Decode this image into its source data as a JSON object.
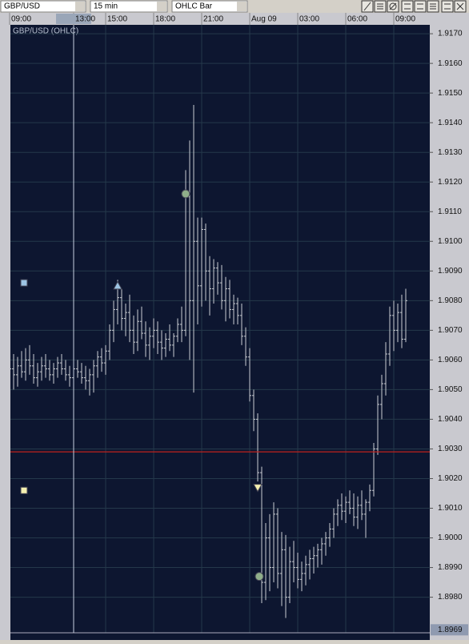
{
  "toolbar": {
    "symbol": "GBP/USD",
    "interval": "15 min",
    "style": "OHLC Bar"
  },
  "chart_data": {
    "type": "ohlc",
    "title": "GBP/USD (OHLC)",
    "open": [
      1.9059,
      1.9057,
      1.9055,
      1.9058,
      1.9056,
      1.906,
      1.9058,
      1.9054,
      1.9056,
      1.9058,
      1.9057,
      1.9055,
      1.9057,
      1.9059,
      1.9057,
      1.9055,
      1.9054,
      1.9057,
      1.9056,
      1.9054,
      1.9053,
      1.9055,
      1.9058,
      1.9061,
      1.9059,
      1.9063,
      1.907,
      1.9077,
      1.9081,
      1.9074,
      1.9076,
      1.907,
      1.9066,
      1.9073,
      1.9069,
      1.9065,
      1.9068,
      1.907,
      1.9066,
      1.9064,
      1.9067,
      1.9065,
      1.9068,
      1.9072,
      1.907,
      1.9115,
      1.908,
      1.91,
      1.9085,
      1.9104,
      1.909,
      1.9084,
      1.9091,
      1.9086,
      1.908,
      1.9084,
      1.9077,
      1.9079,
      1.9075,
      1.9068,
      1.9061,
      1.9048,
      1.904,
      1.9022,
      1.8985,
      1.9,
      1.899,
      1.9008,
      1.8988,
      1.8996,
      1.898,
      1.8992,
      1.899,
      1.8986,
      1.8988,
      1.8991,
      1.8993,
      1.8994,
      1.8996,
      1.8998,
      1.9,
      1.9003,
      1.9008,
      1.9011,
      1.9009,
      1.9012,
      1.901,
      1.9007,
      1.9011,
      1.9008,
      1.9012,
      1.9016,
      1.903,
      1.9045,
      1.9052,
      1.9062,
      1.9075,
      1.907,
      1.9076,
      1.9067
    ],
    "high": [
      1.9063,
      1.9062,
      1.9061,
      1.9063,
      1.9064,
      1.9065,
      1.9062,
      1.9059,
      1.9061,
      1.9062,
      1.906,
      1.9059,
      1.9061,
      1.9062,
      1.906,
      1.9058,
      1.9059,
      1.906,
      1.9059,
      1.9058,
      1.9057,
      1.906,
      1.9063,
      1.9064,
      1.9065,
      1.9072,
      1.908,
      1.9087,
      1.9084,
      1.9079,
      1.9082,
      1.9075,
      1.9077,
      1.9078,
      1.9073,
      1.9071,
      1.9074,
      1.9073,
      1.907,
      1.9069,
      1.9072,
      1.9069,
      1.9074,
      1.9078,
      1.9124,
      1.9134,
      1.9146,
      1.9108,
      1.9108,
      1.9106,
      1.9095,
      1.9094,
      1.9093,
      1.9092,
      1.9088,
      1.9087,
      1.9082,
      1.9081,
      1.9079,
      1.9071,
      1.9064,
      1.905,
      1.9042,
      1.9024,
      1.9005,
      1.9008,
      1.9012,
      1.901,
      1.9002,
      1.9001,
      1.8997,
      1.8999,
      1.8995,
      1.8992,
      1.8994,
      1.8996,
      1.8997,
      1.8998,
      1.9,
      1.9002,
      1.9005,
      1.901,
      1.9013,
      1.9015,
      1.9014,
      1.9016,
      1.9015,
      1.9014,
      1.9016,
      1.9013,
      1.9018,
      1.9032,
      1.9048,
      1.9055,
      1.9066,
      1.9078,
      1.908,
      1.9079,
      1.9082,
      1.9084
    ],
    "low": [
      1.9052,
      1.905,
      1.9051,
      1.9054,
      1.9053,
      1.9055,
      1.9052,
      1.9051,
      1.9053,
      1.9054,
      1.9053,
      1.9052,
      1.9054,
      1.9055,
      1.9053,
      1.9051,
      1.9052,
      1.9054,
      1.9052,
      1.905,
      1.9048,
      1.9049,
      1.9054,
      1.9056,
      1.9055,
      1.906,
      1.9066,
      1.9072,
      1.907,
      1.9068,
      1.9066,
      1.9062,
      1.9063,
      1.9067,
      1.9061,
      1.906,
      1.9064,
      1.9062,
      1.906,
      1.9061,
      1.9063,
      1.9061,
      1.9066,
      1.9066,
      1.9068,
      1.906,
      1.9049,
      1.9072,
      1.9078,
      1.908,
      1.9075,
      1.9079,
      1.9082,
      1.9077,
      1.9073,
      1.9074,
      1.9072,
      1.9072,
      1.9065,
      1.9058,
      1.9046,
      1.9036,
      1.9019,
      1.8978,
      1.8979,
      1.8982,
      1.8985,
      1.8983,
      1.8977,
      1.8973,
      1.8978,
      1.8985,
      1.8983,
      1.8982,
      1.8984,
      1.8986,
      1.8988,
      1.899,
      1.8991,
      1.8994,
      1.8997,
      1.9,
      1.9004,
      1.9006,
      1.9005,
      1.9008,
      1.9004,
      1.9003,
      1.9006,
      1.9,
      1.9009,
      1.9014,
      1.9028,
      1.904,
      1.9048,
      1.9058,
      1.9063,
      1.9066,
      1.9064,
      1.9066
    ],
    "close": [
      1.9057,
      1.9055,
      1.9058,
      1.9056,
      1.906,
      1.9058,
      1.9054,
      1.9056,
      1.9058,
      1.9057,
      1.9055,
      1.9057,
      1.9059,
      1.9057,
      1.9055,
      1.9054,
      1.9057,
      1.9056,
      1.9054,
      1.9053,
      1.9055,
      1.9058,
      1.9061,
      1.9059,
      1.9063,
      1.907,
      1.9077,
      1.9081,
      1.9074,
      1.9076,
      1.907,
      1.9066,
      1.9073,
      1.9069,
      1.9065,
      1.9068,
      1.907,
      1.9066,
      1.9064,
      1.9067,
      1.9065,
      1.9068,
      1.9072,
      1.907,
      1.9115,
      1.908,
      1.91,
      1.9085,
      1.9104,
      1.909,
      1.9084,
      1.9091,
      1.9086,
      1.908,
      1.9084,
      1.9077,
      1.9079,
      1.9075,
      1.9068,
      1.9061,
      1.9048,
      1.904,
      1.9022,
      1.8985,
      1.9,
      1.899,
      1.9008,
      1.8988,
      1.8996,
      1.898,
      1.8992,
      1.899,
      1.8986,
      1.8988,
      1.8991,
      1.8993,
      1.8994,
      1.8996,
      1.8998,
      1.9,
      1.9003,
      1.9008,
      1.9011,
      1.9009,
      1.9012,
      1.901,
      1.9007,
      1.9011,
      1.9008,
      1.9012,
      1.9016,
      1.903,
      1.9045,
      1.9052,
      1.9062,
      1.9075,
      1.907,
      1.9076,
      1.9067,
      1.908
    ],
    "color": "#c9ccd2",
    "background": "#0d1630",
    "grid_color": "#24384a",
    "xlim": [
      0.2,
      105
    ],
    "xticks": [
      {
        "value": 0,
        "label": "09:00"
      },
      {
        "value": 16,
        "label": "13:00"
      },
      {
        "value": 24,
        "label": "15:00"
      },
      {
        "value": 36,
        "label": "18:00"
      },
      {
        "value": 48,
        "label": "21:00"
      },
      {
        "value": 60,
        "label": "Aug 09"
      },
      {
        "value": 72,
        "label": "03:00"
      },
      {
        "value": 84,
        "label": "06:00"
      },
      {
        "value": 96,
        "label": "09:00"
      }
    ],
    "ylim": [
      1.8968,
      1.9173
    ],
    "yticks": [
      {
        "value": 1.917,
        "label": "1.9170"
      },
      {
        "value": 1.916,
        "label": "1.9160"
      },
      {
        "value": 1.915,
        "label": "1.9150"
      },
      {
        "value": 1.914,
        "label": "1.9140"
      },
      {
        "value": 1.913,
        "label": "1.9130"
      },
      {
        "value": 1.912,
        "label": "1.9120"
      },
      {
        "value": 1.911,
        "label": "1.9110"
      },
      {
        "value": 1.91,
        "label": "1.9100"
      },
      {
        "value": 1.909,
        "label": "1.9090"
      },
      {
        "value": 1.908,
        "label": "1.9080"
      },
      {
        "value": 1.907,
        "label": "1.9070"
      },
      {
        "value": 1.906,
        "label": "1.9060"
      },
      {
        "value": 1.905,
        "label": "1.9050"
      },
      {
        "value": 1.904,
        "label": "1.9040"
      },
      {
        "value": 1.903,
        "label": "1.9030"
      },
      {
        "value": 1.902,
        "label": "1.9020"
      },
      {
        "value": 1.901,
        "label": "1.9010"
      },
      {
        "value": 1.9,
        "label": "1.9000"
      },
      {
        "value": 1.899,
        "label": "1.8990"
      },
      {
        "value": 1.898,
        "label": "1.8980"
      }
    ],
    "grid": true,
    "hline": {
      "value": 1.9029,
      "color": "#c0201c"
    },
    "cursor": {
      "x": 16,
      "y": {
        "value": 1.8969,
        "label": "1.8969"
      }
    },
    "markers": [
      {
        "shape": "square",
        "color": "#9cc4e4",
        "x": 3.6,
        "y": 1.9086
      },
      {
        "shape": "square",
        "color": "#f4f0b0",
        "x": 3.6,
        "y": 1.9016
      },
      {
        "shape": "triangle-up",
        "color": "#9cc4e4",
        "x": 27,
        "y": 1.9085
      },
      {
        "shape": "circle",
        "color": "#8fae8a",
        "x": 44,
        "y": 1.9116
      },
      {
        "shape": "triangle-down",
        "color": "#f4f0b0",
        "x": 62,
        "y": 1.9017
      },
      {
        "shape": "circle",
        "color": "#8fae8a",
        "x": 62.4,
        "y": 1.8987
      }
    ]
  }
}
